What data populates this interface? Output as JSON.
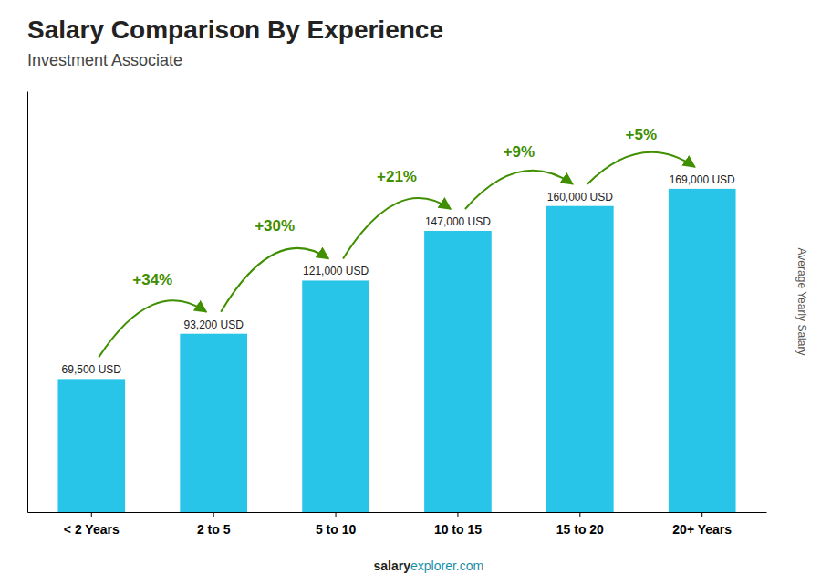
{
  "chart_data": {
    "type": "bar",
    "title": "Salary Comparison By Experience",
    "subtitle": "Investment Associate",
    "ylabel": "Average Yearly Salary",
    "categories": [
      "< 2 Years",
      "2 to 5",
      "5 to 10",
      "10 to 15",
      "15 to 20",
      "20+ Years"
    ],
    "values": [
      69500,
      93200,
      121000,
      147000,
      160000,
      169000
    ],
    "value_labels": [
      "69,500 USD",
      "93,200 USD",
      "121,000 USD",
      "147,000 USD",
      "160,000 USD",
      "169,000 USD"
    ],
    "data_labels": true,
    "color": "#29C5E8",
    "ylim": [
      0,
      220000
    ],
    "tick_labels": "x",
    "grid": false,
    "annotations": [
      {
        "text": "+34%",
        "from": "< 2 Years",
        "to": "2 to 5"
      },
      {
        "text": "+30%",
        "from": "2 to 5",
        "to": "5 to 10"
      },
      {
        "text": "+21%",
        "from": "5 to 10",
        "to": "10 to 15"
      },
      {
        "text": "+9%",
        "from": "10 to 15",
        "to": "15 to 20"
      },
      {
        "text": "+5%",
        "from": "15 to 20",
        "to": "20+ Years"
      }
    ],
    "footer": [
      "salary",
      "explorer.com"
    ]
  }
}
